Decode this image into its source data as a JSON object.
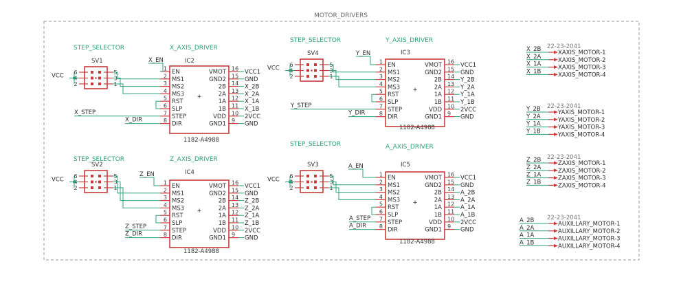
{
  "frame": {
    "title": "MOTOR_DRIVERS"
  },
  "selector_title": "STEP_SELECTOR",
  "driver_part": "1182-A4988",
  "driver_pins_left": [
    {
      "num": "1",
      "name": "EN"
    },
    {
      "num": "2",
      "name": "MS1"
    },
    {
      "num": "3",
      "name": "MS2"
    },
    {
      "num": "4",
      "name": "MS3"
    },
    {
      "num": "5",
      "name": "RST"
    },
    {
      "num": "6",
      "name": "SLP"
    },
    {
      "num": "7",
      "name": "STEP"
    },
    {
      "num": "8",
      "name": "DIR"
    }
  ],
  "driver_pins_right": [
    {
      "num": "16",
      "name": "VMOT"
    },
    {
      "num": "15",
      "name": "GND2"
    },
    {
      "num": "14",
      "name": "2B"
    },
    {
      "num": "13",
      "name": "2A"
    },
    {
      "num": "12",
      "name": "1A"
    },
    {
      "num": "11",
      "name": "1B"
    },
    {
      "num": "10",
      "name": "VDD"
    },
    {
      "num": "9",
      "name": "GND1"
    }
  ],
  "selector_pins": {
    "left": [
      "6",
      "4",
      "2"
    ],
    "right": [
      "5",
      "3",
      "1"
    ]
  },
  "blocks": [
    {
      "selector_ref": "SV1",
      "driver_ref": "IC2",
      "driver_title": "X_AXIS_DRIVER",
      "vcc": "VCC",
      "en": "X_EN",
      "step": "X_STEP",
      "dir": "X_DIR",
      "right_nets": [
        "VCC1",
        "GND",
        "X_2B",
        "X_2A",
        "X_1A",
        "X_1B",
        "2VCC",
        "GND"
      ]
    },
    {
      "selector_ref": "SV4",
      "driver_ref": "IC3",
      "driver_title": "Y_AXIS_DRIVER",
      "vcc": "VCC",
      "en": "Y_EN",
      "step": "Y_STEP",
      "dir": "Y_DIR",
      "right_nets": [
        "VCC1",
        "GND",
        "Y_2B",
        "Y_2A",
        "Y_1A",
        "Y_1B",
        "2VCC",
        "GND"
      ]
    },
    {
      "selector_ref": "SV2",
      "driver_ref": "IC4",
      "driver_title": "Z_AXIS_DRIVER",
      "vcc": "VCC",
      "en": "Z_EN",
      "step": "Z_STEP",
      "dir": "Z_DIR",
      "right_nets": [
        "VCC1",
        "GND",
        "Z_2B",
        "Z_2A",
        "Z_1A",
        "Z_1B",
        "2VCC",
        "GND"
      ]
    },
    {
      "selector_ref": "SV3",
      "driver_ref": "IC5",
      "driver_title": "A_AXIS_DRIVER",
      "vcc": "VCC",
      "en": "A_EN",
      "step": "A_STEP",
      "dir": "A_DIR",
      "right_nets": [
        "VCC1",
        "GND",
        "A_2B",
        "A_2A",
        "A_1A",
        "A_1B",
        "2VCC",
        "GND"
      ]
    }
  ],
  "connectors": [
    {
      "title": "22-23-2041",
      "nets": [
        "X_2B",
        "X_2A",
        "X_1A",
        "X_1B"
      ],
      "labels": [
        "XAXIS_MOTOR-1",
        "XAXIS_MOTOR-2",
        "XAXIS_MOTOR-3",
        "XAXIS_MOTOR-4"
      ]
    },
    {
      "title": "22-23-2041",
      "nets": [
        "Y_2B",
        "Y_2A",
        "Y_1A",
        "Y_1B"
      ],
      "labels": [
        "YAXIS_MOTOR-1",
        "YAXIS_MOTOR-2",
        "YAXIS_MOTOR-3",
        "YAXIS_MOTOR-4"
      ]
    },
    {
      "title": "22-23-2041",
      "nets": [
        "Z_2B",
        "Z_2A",
        "Z_1A",
        "Z_1B"
      ],
      "labels": [
        "ZAXIS_MOTOR-1",
        "ZAXIS_MOTOR-2",
        "ZAXIS_MOTOR-3",
        "ZAXIS_MOTOR-4"
      ]
    },
    {
      "title": "22-23-2041",
      "nets": [
        "A_2B",
        "A_2A",
        "A_1A",
        "A_1B"
      ],
      "labels": [
        "AUXILLARY_MOTOR-1",
        "AUXILLARY_MOTOR-2",
        "AUXILLARY_MOTOR-3",
        "AUXILLARY_MOTOR-4"
      ]
    }
  ]
}
